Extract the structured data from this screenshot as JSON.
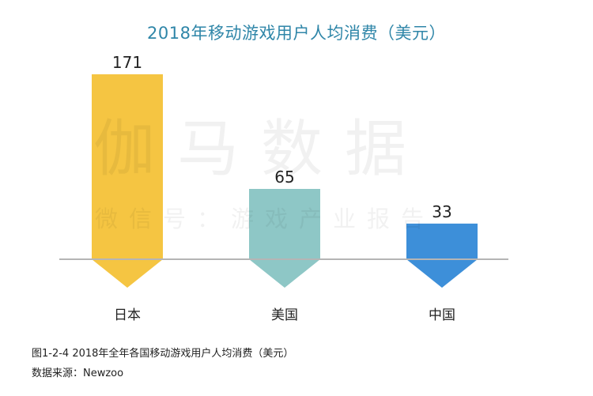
{
  "chart_data": {
    "type": "bar",
    "title": "2018年移动游戏用户人均消费（美元）",
    "categories": [
      "日本",
      "美国",
      "中国"
    ],
    "values": [
      171,
      65,
      33
    ],
    "colors": [
      "#f5c542",
      "#8ec7c6",
      "#3d8fd9"
    ],
    "ylim": [
      0,
      171
    ],
    "xlabel": "",
    "ylabel": "",
    "grid": false
  },
  "watermark": {
    "main": "伽马数据",
    "sub": "微信号：游戏产业报告"
  },
  "caption": {
    "figure": "图1-2-4  2018年全年各国移动游戏用户人均消费（美元）",
    "source": "数据来源：Newzoo"
  }
}
